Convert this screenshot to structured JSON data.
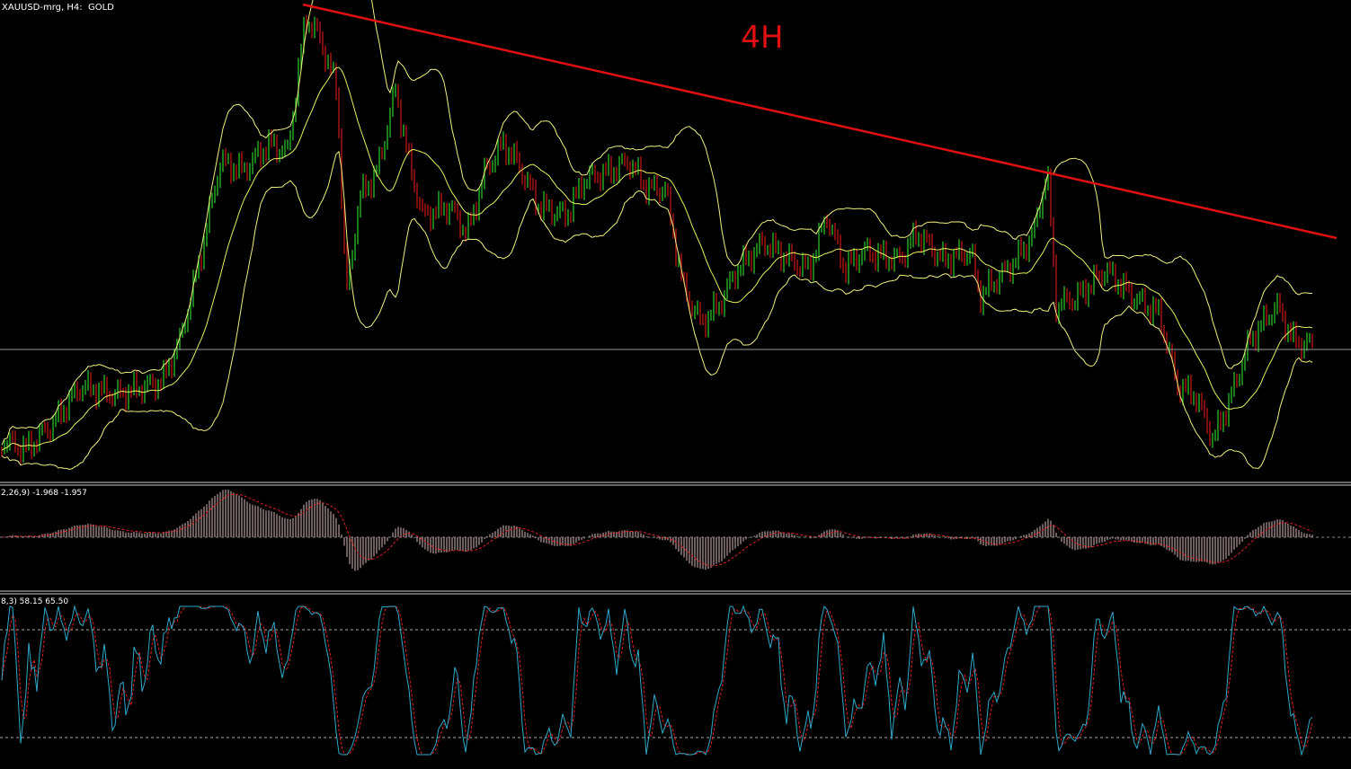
{
  "header": {
    "symbol_label": "XAUUSD-mrg, H4:  GOLD",
    "timeframe_note": "4H"
  },
  "macd_panel": {
    "label": "2,26,9) -1.968 -1.957"
  },
  "stochastic_panel": {
    "label": "8,3) 58.15 65.50"
  }
}
